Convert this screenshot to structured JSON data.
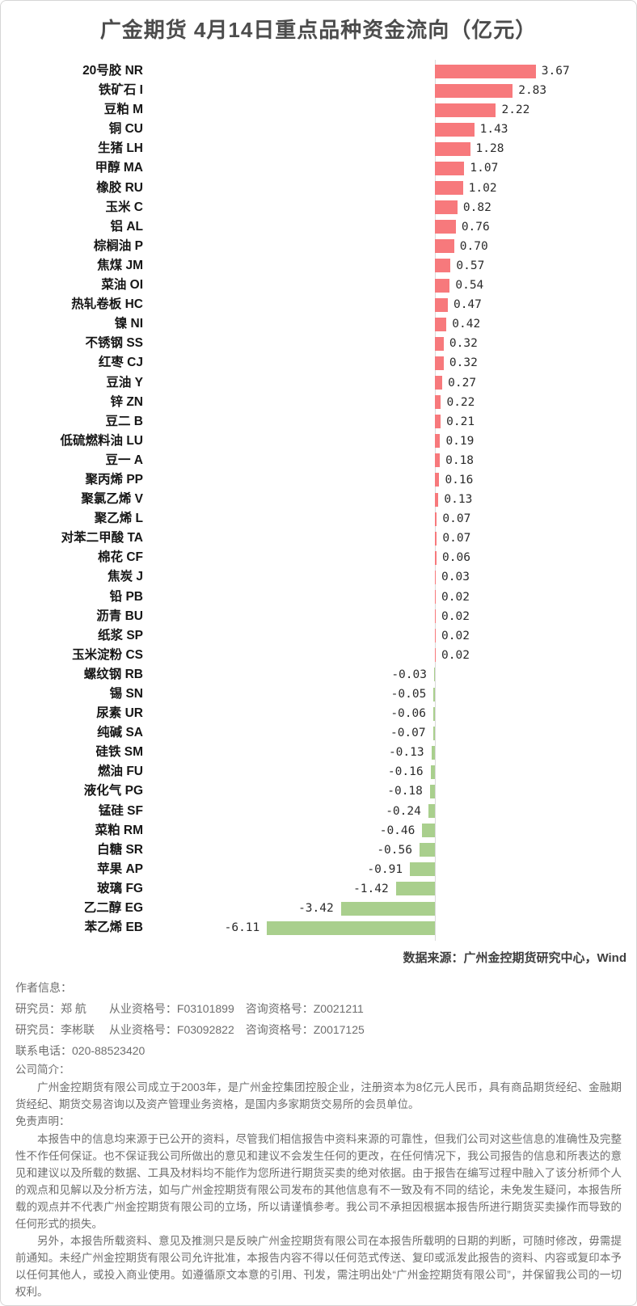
{
  "page": {
    "title": "广金期货 4月14日重点品种资金流向（亿元）",
    "source_note": "数据来源：广州金控期货研究中心，Wind"
  },
  "chart_data": {
    "type": "bar",
    "orientation": "horizontal",
    "title": "广金期货 4月14日重点品种资金流向（亿元）",
    "unit": "亿元",
    "xlabel": "",
    "ylabel": "",
    "xlim": [
      -6.5,
      4.5
    ],
    "grid": false,
    "legend": "none",
    "positive_color": "#f7797c",
    "negative_color": "#a9cf8d",
    "axis_color": "#d9d9d9",
    "value_labels_shown": true,
    "categories": [
      "20号胶 NR",
      "铁矿石 I",
      "豆粕 M",
      "铜 CU",
      "生猪 LH",
      "甲醇 MA",
      "橡胶 RU",
      "玉米 C",
      "铝 AL",
      "棕榈油 P",
      "焦煤 JM",
      "菜油 OI",
      "热轧卷板 HC",
      "镍 NI",
      "不锈钢 SS",
      "红枣 CJ",
      "豆油 Y",
      "锌 ZN",
      "豆二 B",
      "低硫燃料油 LU",
      "豆一 A",
      "聚丙烯 PP",
      "聚氯乙烯 V",
      "聚乙烯 L",
      "对苯二甲酸 TA",
      "棉花 CF",
      "焦炭 J",
      "铅 PB",
      "沥青 BU",
      "纸浆 SP",
      "玉米淀粉 CS",
      "螺纹钢 RB",
      "锡 SN",
      "尿素 UR",
      "纯碱 SA",
      "硅铁 SM",
      "燃油 FU",
      "液化气 PG",
      "锰硅 SF",
      "菜粕 RM",
      "白糖 SR",
      "苹果 AP",
      "玻璃 FG",
      "乙二醇 EG",
      "苯乙烯 EB"
    ],
    "values": [
      3.67,
      2.83,
      2.22,
      1.43,
      1.28,
      1.07,
      1.02,
      0.82,
      0.76,
      0.7,
      0.57,
      0.54,
      0.47,
      0.42,
      0.32,
      0.32,
      0.27,
      0.22,
      0.21,
      0.19,
      0.18,
      0.16,
      0.13,
      0.07,
      0.07,
      0.06,
      0.03,
      0.02,
      0.02,
      0.02,
      0.02,
      -0.03,
      -0.05,
      -0.06,
      -0.07,
      -0.13,
      -0.16,
      -0.18,
      -0.24,
      -0.46,
      -0.56,
      -0.91,
      -1.42,
      -3.42,
      -6.11
    ]
  },
  "footer": {
    "author_header": "作者信息：",
    "author_lines": [
      "研究员：郑 航　　从业资格号：F03101899　咨询资格号：Z0021211",
      "研究员：李彬联　 从业资格号：F03092822　咨询资格号：Z0017125"
    ],
    "contact": "联系电话：020-88523420",
    "company_header": "公司简介：",
    "company_text": "广州金控期货有限公司成立于2003年，是广州金控集团控股企业，注册资本为8亿元人民币，具有商品期货经纪、金融期货经纪、期货交易咨询以及资产管理业务资格，是国内多家期货交易所的会员单位。",
    "disclaimer_header": "免责声明：",
    "disclaimer_p1": "本报告中的信息均来源于已公开的资料，尽管我们相信报告中资料来源的可靠性，但我们公司对这些信息的准确性及完整性不作任何保证。也不保证我公司所做出的意见和建议不会发生任何的更改，在任何情况下，我公司报告的信息和所表达的意见和建议以及所载的数据、工具及材料均不能作为您所进行期货买卖的绝对依据。由于报告在编写过程中融入了该分析师个人的观点和见解以及分析方法，如与广州金控期货有限公司发布的其他信息有不一致及有不同的结论，未免发生疑问，本报告所载的观点并不代表广州金控期货有限公司的立场，所以请谨慎参考。我公司不承担因根据本报告所进行期货买卖操作而导致的任何形式的损失。",
    "disclaimer_p2": "另外，本报告所载资料、意见及推测只是反映广州金控期货有限公司在本报告所载明的日期的判断，可随时修改，毋需提前通知。未经广州金控期货有限公司允许批准，本报告内容不得以任何范式传送、复印或派发此报告的资料、内容或复印本予以任何其他人，或投入商业使用。如遵循原文本意的引用、刊发，需注明出处“广州金控期货有限公司”，并保留我公司的一切权利。"
  }
}
